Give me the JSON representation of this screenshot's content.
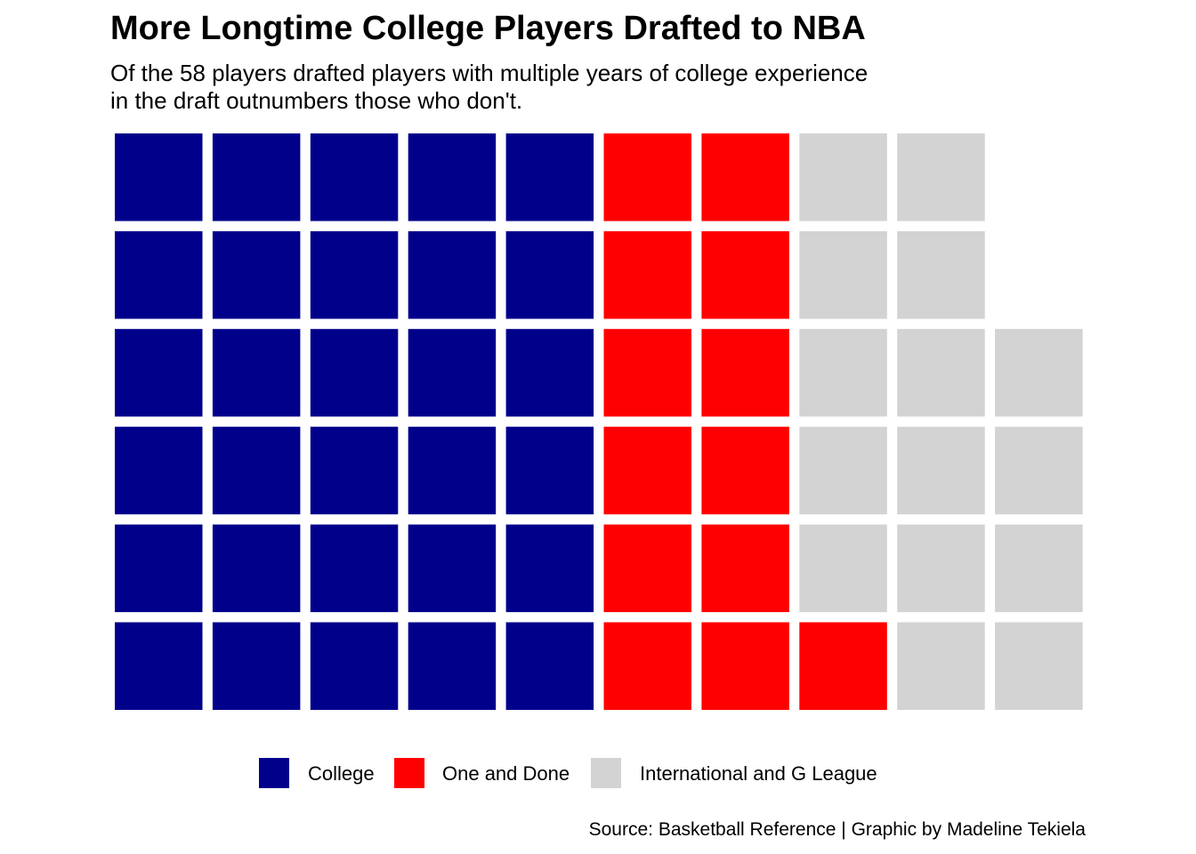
{
  "title": "More Longtime College Players Drafted to NBA",
  "subtitle_lines": [
    "Of the 58 players drafted players with multiple years of college experience",
    "in the draft outnumbers those who don't."
  ],
  "caption": "Source: Basketball Reference | Graphic by Madeline Tekiela",
  "chart_data": {
    "type": "waffle",
    "title": "More Longtime College Players Drafted to NBA",
    "total": 58,
    "rows": 6,
    "fill_order": "column-wise, bottom to top, left to right",
    "categories": [
      {
        "name": "College",
        "count": 30,
        "color": "#00008B"
      },
      {
        "name": "One and Done",
        "count": 13,
        "color": "#FF0000"
      },
      {
        "name": "International and G League",
        "count": 15,
        "color": "#D3D3D3"
      }
    ],
    "legend_position": "bottom",
    "grid": false
  }
}
